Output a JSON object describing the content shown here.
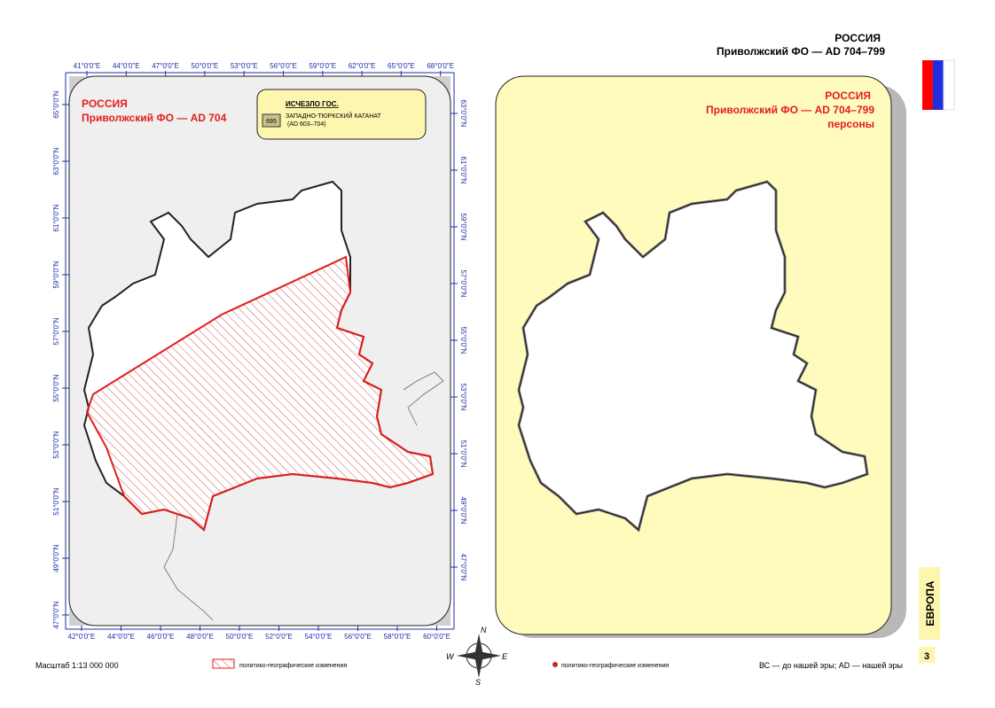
{
  "header": {
    "country": "РОССИЯ",
    "subtitle": "Приволжский ФО — AD 704–799"
  },
  "left_map": {
    "title": "РОССИЯ",
    "subtitle": "Приволжский ФО — AD 704",
    "legend": {
      "heading": "ИСЧЕЗЛО ГОС.",
      "code": "695",
      "name": "ЗАПАДНО-ТЮРКСКИЙ КАГАНАТ",
      "period": "(AD 603–704)"
    },
    "top_ticks": [
      "41°0'0\"E",
      "44°0'0\"E",
      "47°0'0\"E",
      "50°0'0\"E",
      "53°0'0\"E",
      "56°0'0\"E",
      "59°0'0\"E",
      "62°0'0\"E",
      "65°0'0\"E",
      "68°0'0\"E"
    ],
    "bottom_ticks": [
      "42°0'0\"E",
      "44°0'0\"E",
      "46°0'0\"E",
      "48°0'0\"E",
      "50°0'0\"E",
      "52°0'0\"E",
      "54°0'0\"E",
      "56°0'0\"E",
      "58°0'0\"E",
      "60°0'0\"E"
    ],
    "left_ticks": [
      "65°0'0\"N",
      "63°0'0\"N",
      "61°0'0\"N",
      "59°0'0\"N",
      "57°0'0\"N",
      "55°0'0\"N",
      "53°0'0\"N",
      "51°0'0\"N",
      "49°0'0\"N",
      "47°0'0\"N"
    ],
    "right_ticks": [
      "63°0'0\"N",
      "61°0'0\"N",
      "59°0'0\"N",
      "57°0'0\"N",
      "55°0'0\"N",
      "53°0'0\"N",
      "51°0'0\"N",
      "49°0'0\"N",
      "47°0'0\"N"
    ]
  },
  "right_map": {
    "title": "РОССИЯ",
    "subtitle": "Приволжский ФО — AD 704–799",
    "note": "персоны"
  },
  "compass": {
    "n": "N",
    "w": "W",
    "e": "E",
    "s": "S"
  },
  "footer": {
    "scale": "Масштаб 1:13 000 000",
    "legend_left": "политико-географические изменения",
    "legend_right": "политико-географические изменения",
    "era_note": "ВС — до нашей эры; AD — нашей эры"
  },
  "side": {
    "region": "ЕВРОПА",
    "page": "3"
  }
}
